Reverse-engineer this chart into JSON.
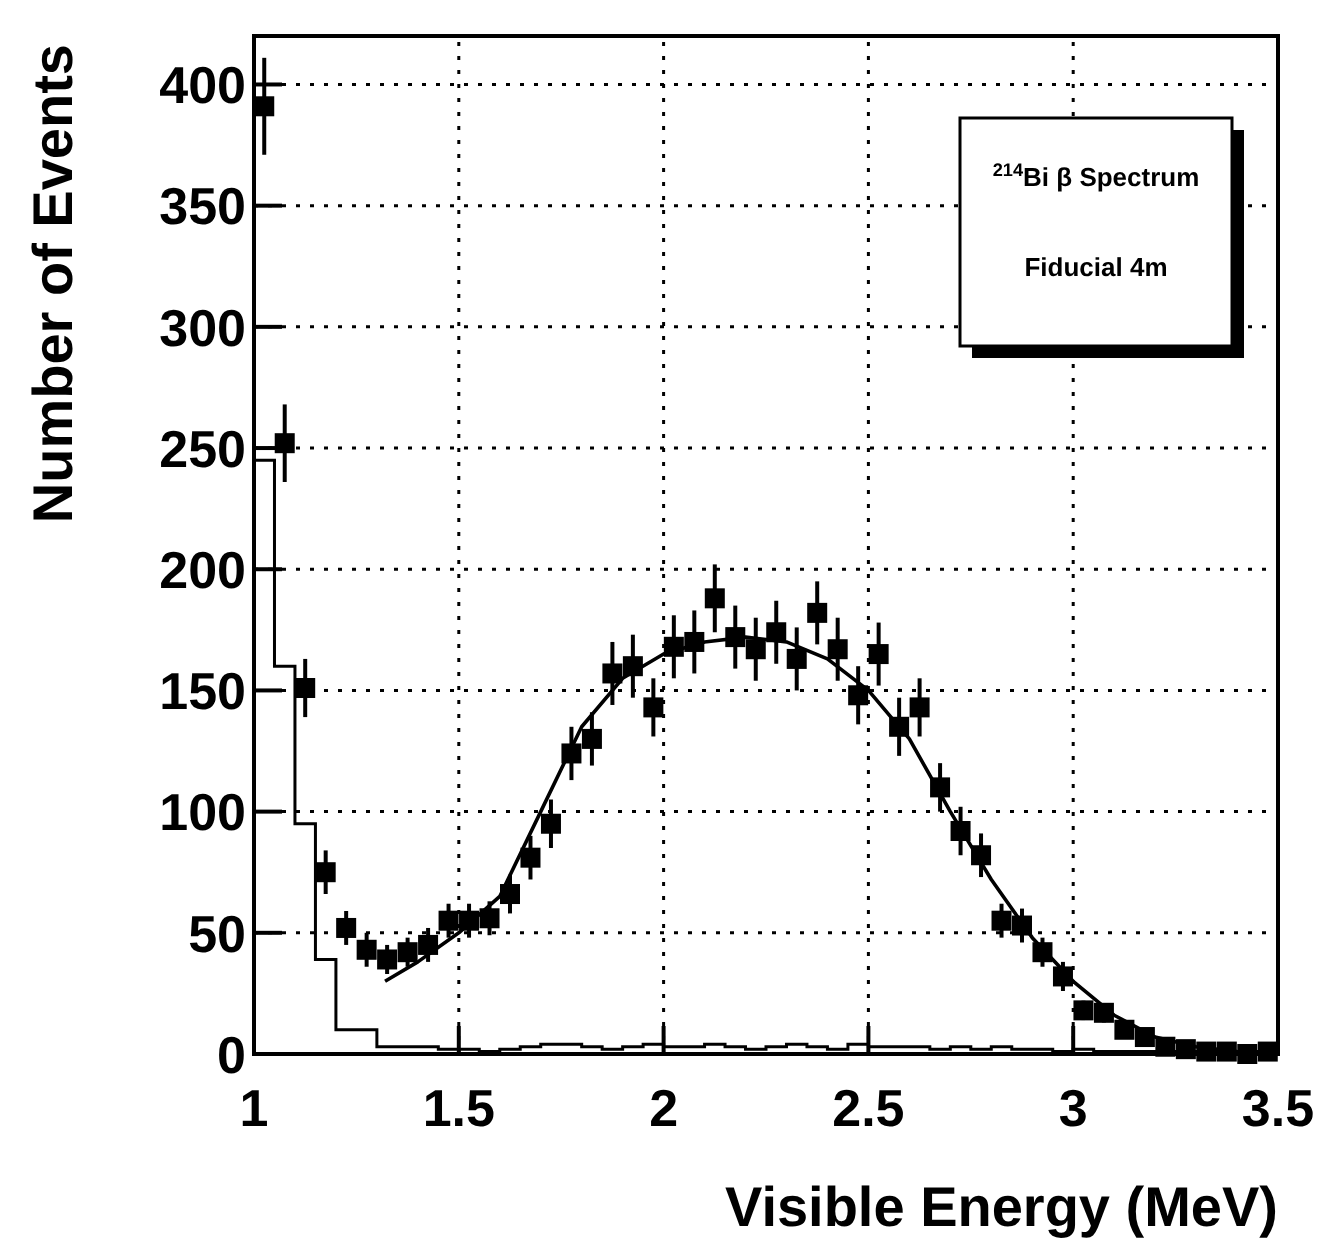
{
  "chart_data": {
    "type": "scatter",
    "xlabel": "Visible Energy (MeV)",
    "ylabel": "Number of Events",
    "xlim": [
      1,
      3.5
    ],
    "ylim": [
      0,
      420
    ],
    "xticks": [
      1,
      1.5,
      2,
      2.5,
      3,
      3.5
    ],
    "yticks": [
      0,
      50,
      100,
      150,
      200,
      250,
      300,
      350,
      400
    ],
    "grid": true,
    "annotations": [
      "$^{214}$Bi β Spectrum",
      "Fiducial 4m"
    ],
    "series": [
      {
        "type": "step",
        "color": "#000000",
        "x": [
          1,
          1.05,
          1.1,
          1.15,
          1.2,
          1.25,
          1.3,
          1.35,
          1.4,
          1.45,
          1.5,
          1.55,
          1.6,
          1.65,
          1.7,
          1.75,
          1.8,
          1.85,
          1.9,
          1.95,
          2,
          2.05,
          2.1,
          2.15,
          2.2,
          2.25,
          2.3,
          2.35,
          2.4,
          2.45,
          2.5,
          2.55,
          2.6,
          2.65,
          2.7,
          2.75,
          2.8,
          2.85,
          2.9,
          2.95,
          3,
          3.05,
          3.1,
          3.15,
          3.2,
          3.25,
          3.3,
          3.35,
          3.4,
          3.45,
          3.5
        ],
        "values": [
          245,
          160,
          95,
          39,
          10,
          10,
          3,
          3,
          3,
          2,
          2,
          1,
          2,
          3,
          4,
          4,
          3,
          2,
          3,
          4,
          3,
          3,
          4,
          3,
          2,
          3,
          4,
          3,
          2,
          4,
          3,
          3,
          3,
          2,
          3,
          2,
          3,
          2,
          2,
          1,
          2,
          1,
          1,
          1,
          1,
          1,
          1,
          0,
          1,
          0,
          0
        ]
      },
      {
        "type": "line",
        "color": "#000000",
        "line_style": "solid",
        "marker": "none",
        "x": [
          1.32,
          1.4,
          1.5,
          1.6,
          1.7,
          1.8,
          1.9,
          2,
          2.1,
          2.2,
          2.3,
          2.4,
          2.5,
          2.6,
          2.7,
          2.8,
          2.9,
          3,
          3.1,
          3.2,
          3.3,
          3.4,
          3.5
        ],
        "values": [
          30,
          38,
          50,
          65,
          100,
          135,
          155,
          165,
          170,
          172,
          170,
          163,
          150,
          130,
          100,
          72,
          48,
          30,
          16,
          7,
          3,
          1,
          0
        ]
      },
      {
        "color": "#000000",
        "marker": "square",
        "x": [
          1.025,
          1.075,
          1.125,
          1.175,
          1.225,
          1.275,
          1.325,
          1.375,
          1.425,
          1.475,
          1.525,
          1.575,
          1.625,
          1.675,
          1.725,
          1.775,
          1.825,
          1.875,
          1.925,
          1.975,
          2.025,
          2.075,
          2.125,
          2.175,
          2.225,
          2.275,
          2.325,
          2.375,
          2.425,
          2.475,
          2.525,
          2.575,
          2.625,
          2.675,
          2.725,
          2.775,
          2.825,
          2.875,
          2.925,
          2.975,
          3.025,
          3.075,
          3.125,
          3.175,
          3.225,
          3.275,
          3.325,
          3.375,
          3.425,
          3.475
        ],
        "values": [
          391,
          252,
          151,
          75,
          52,
          43,
          39,
          42,
          45,
          55,
          55,
          56,
          66,
          81,
          95,
          124,
          130,
          157,
          160,
          143,
          168,
          170,
          188,
          172,
          167,
          174,
          163,
          182,
          167,
          148,
          165,
          135,
          143,
          110,
          92,
          82,
          55,
          53,
          42,
          32,
          18,
          17,
          10,
          7,
          3,
          2,
          1,
          1,
          0,
          1
        ],
        "errors": [
          20,
          16,
          12,
          9,
          7,
          7,
          6,
          6,
          7,
          7,
          7,
          7,
          8,
          9,
          10,
          11,
          11,
          13,
          13,
          12,
          13,
          13,
          14,
          13,
          13,
          13,
          13,
          13,
          13,
          12,
          13,
          12,
          12,
          10,
          10,
          9,
          7,
          7,
          6,
          6,
          4,
          4,
          3,
          3,
          2,
          1,
          1,
          1,
          0,
          1
        ]
      }
    ]
  }
}
